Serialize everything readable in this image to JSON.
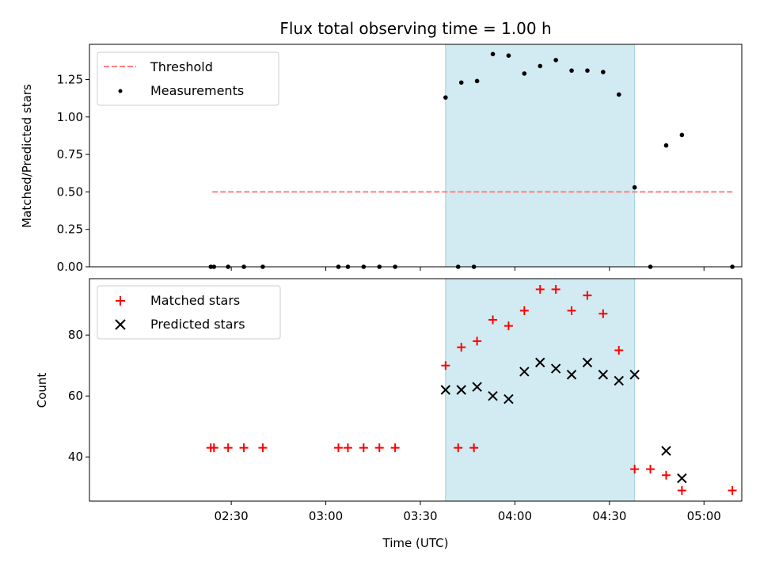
{
  "chart_data": [
    {
      "type": "scatter",
      "panel": "top",
      "title": "Flux total observing time = 1.00 h",
      "xlabel": "",
      "ylabel": "Matched/Predicted stars",
      "x_unit": "minutes after 02:00 UTC",
      "xlim": [
        -15,
        192
      ],
      "ylim": [
        0.0,
        1.485
      ],
      "yticks": [
        0.0,
        0.25,
        0.5,
        0.75,
        1.0,
        1.25
      ],
      "ytick_labels": [
        "0.00",
        "0.25",
        "0.50",
        "0.75",
        "1.00",
        "1.25"
      ],
      "shaded_span": {
        "from": 98,
        "to": 158,
        "color": "#add8e6"
      },
      "legend": {
        "loc": "upper left",
        "entries": [
          "Threshold",
          "Measurements"
        ]
      },
      "series": [
        {
          "name": "Threshold",
          "style": "dashed-line",
          "color": "#ff7f7f",
          "x": [
            24,
            189
          ],
          "y": [
            0.5,
            0.5
          ]
        },
        {
          "name": "Measurements",
          "style": "dot",
          "color": "#000000",
          "x": [
            23.5,
            24.5,
            29,
            34,
            40,
            64,
            67,
            72,
            77,
            82,
            102,
            107,
            98,
            103,
            108,
            113,
            118,
            123,
            128,
            133,
            138,
            143,
            148,
            153,
            158,
            163,
            173,
            168,
            189
          ],
          "y": [
            0,
            0,
            0,
            0,
            0,
            0,
            0,
            0,
            0,
            0,
            0,
            0,
            1.13,
            1.23,
            1.24,
            1.42,
            1.41,
            1.29,
            1.34,
            1.38,
            1.31,
            1.31,
            1.3,
            1.15,
            0.53,
            0.0,
            0.88,
            0.81,
            0.0
          ]
        }
      ]
    },
    {
      "type": "scatter",
      "panel": "bottom",
      "title": "",
      "xlabel": "Time (UTC)",
      "ylabel": "Count",
      "x_unit": "minutes after 02:00 UTC",
      "xlim": [
        -15,
        192
      ],
      "ylim": [
        25.5,
        98.5
      ],
      "xticks": [
        30,
        60,
        90,
        120,
        150,
        180
      ],
      "xtick_labels": [
        "02:30",
        "03:00",
        "03:30",
        "04:00",
        "04:30",
        "05:00"
      ],
      "yticks": [
        40,
        60,
        80
      ],
      "ytick_labels": [
        "40",
        "60",
        "80"
      ],
      "shaded_span": {
        "from": 98,
        "to": 158,
        "color": "#add8e6"
      },
      "legend": {
        "loc": "upper left",
        "entries": [
          "Matched stars",
          "Predicted stars"
        ]
      },
      "series": [
        {
          "name": "Matched stars",
          "marker": "plus",
          "color": "#ff0000",
          "x": [
            23.5,
            24.5,
            29,
            34,
            40,
            64,
            67,
            72,
            77,
            82,
            102,
            107,
            98,
            103,
            108,
            113,
            118,
            123,
            128,
            133,
            138,
            143,
            148,
            153,
            158,
            163,
            168,
            173,
            189
          ],
          "y": [
            43,
            43,
            43,
            43,
            43,
            43,
            43,
            43,
            43,
            43,
            43,
            43,
            70,
            76,
            78,
            85,
            83,
            88,
            95,
            95,
            88,
            93,
            87,
            75,
            36,
            36,
            34,
            29,
            29
          ]
        },
        {
          "name": "Predicted stars",
          "marker": "x",
          "color": "#000000",
          "x": [
            98,
            103,
            108,
            113,
            118,
            123,
            128,
            133,
            138,
            143,
            148,
            153,
            158,
            168,
            173
          ],
          "y": [
            62,
            62,
            63,
            60,
            59,
            68,
            71,
            69,
            67,
            71,
            67,
            65,
            67,
            42,
            33
          ]
        }
      ]
    }
  ]
}
